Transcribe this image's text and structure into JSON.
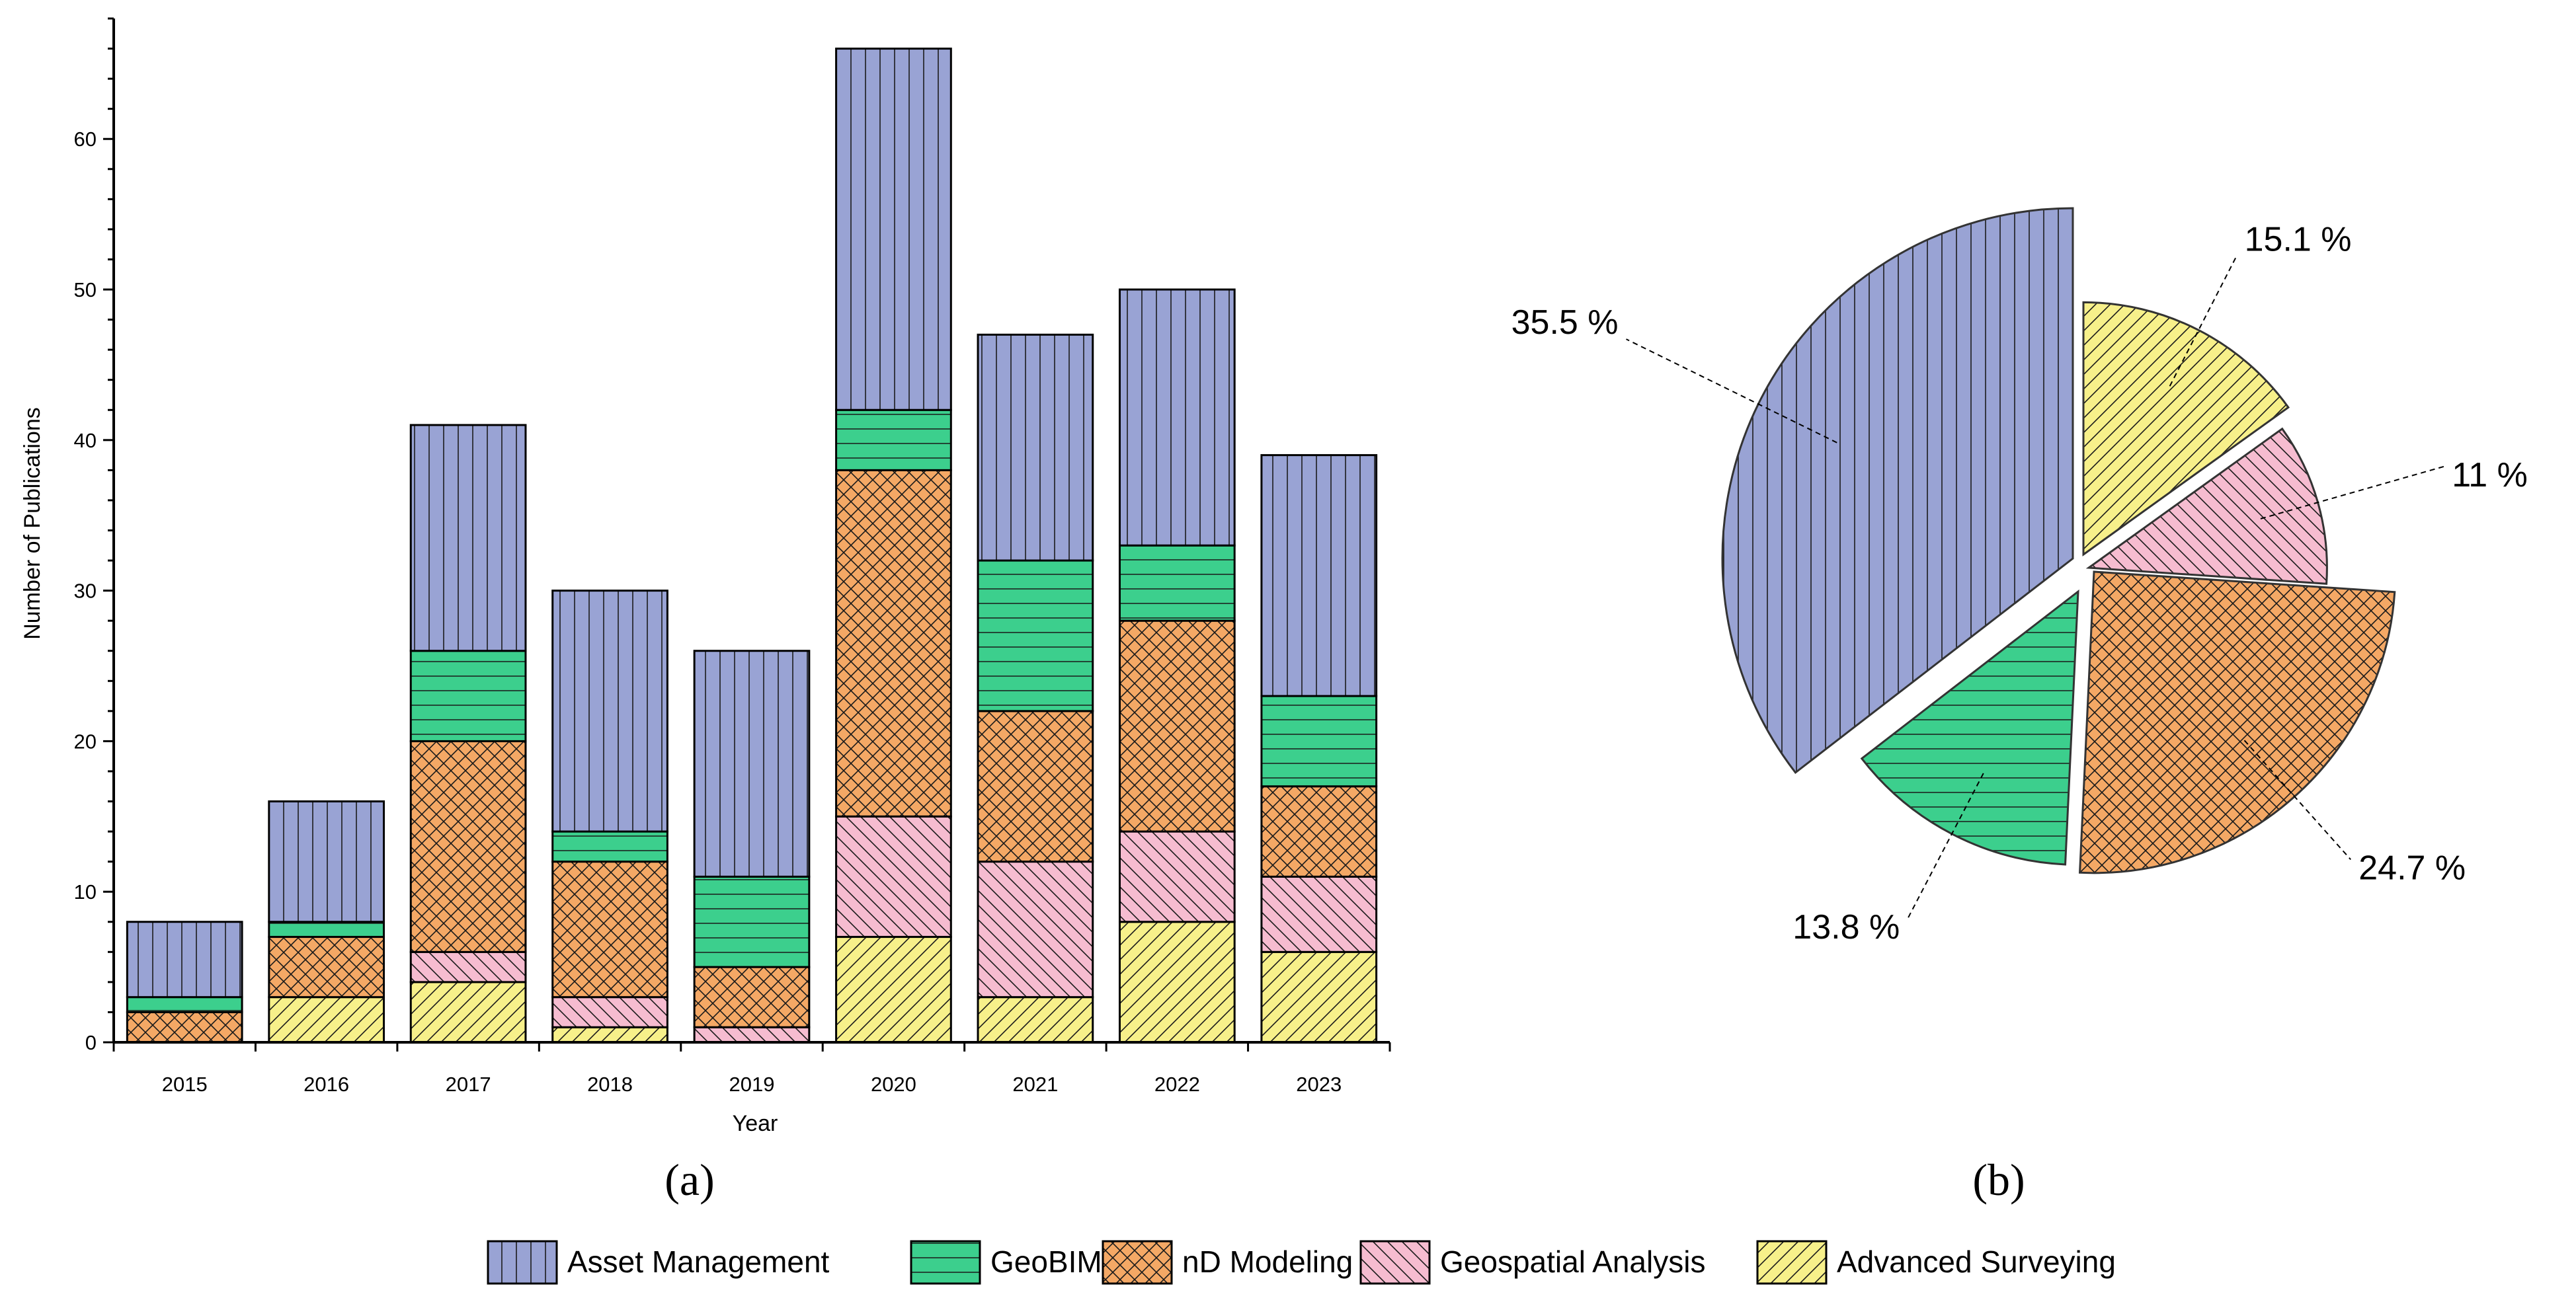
{
  "colors": {
    "Asset Management": "#99a3d4",
    "GeoBIM": "#3ccf8d",
    "nD Modeling": "#f4a865",
    "Geospatial Analysis": "#f6bcd0",
    "Advanced Surveying": "#f7f08a"
  },
  "hatches": {
    "Asset Management": "vertical",
    "GeoBIM": "horizontal",
    "nD Modeling": "crosshatch",
    "Geospatial Analysis": "backslash",
    "Advanced Surveying": "slash"
  },
  "legend": {
    "items": [
      "Asset Management",
      "GeoBIM",
      "nD Modeling",
      "Geospatial Analysis",
      "Advanced Surveying"
    ]
  },
  "panels": {
    "a_label": "(a)",
    "b_label": "(b)"
  },
  "chart_data": [
    {
      "type": "bar",
      "stacked": true,
      "panel": "(a)",
      "title": "",
      "xlabel": "Year",
      "ylabel": "Number of Publications",
      "ylim": [
        0,
        68
      ],
      "yticks": [
        0,
        10,
        20,
        30,
        40,
        50,
        60
      ],
      "categories": [
        "2015",
        "2016",
        "2017",
        "2018",
        "2019",
        "2020",
        "2021",
        "2022",
        "2023"
      ],
      "series": [
        {
          "name": "Advanced Surveying",
          "values": [
            0,
            3,
            4,
            1,
            0,
            7,
            3,
            8,
            6
          ]
        },
        {
          "name": "Geospatial Analysis",
          "values": [
            0,
            0,
            2,
            2,
            1,
            8,
            9,
            6,
            5
          ]
        },
        {
          "name": "nD Modeling",
          "values": [
            2,
            4,
            14,
            9,
            4,
            23,
            10,
            14,
            6
          ]
        },
        {
          "name": "GeoBIM",
          "values": [
            1,
            1,
            6,
            2,
            6,
            4,
            10,
            5,
            6
          ]
        },
        {
          "name": "Asset Management",
          "values": [
            5,
            8,
            15,
            16,
            15,
            24,
            15,
            17,
            16
          ]
        }
      ]
    },
    {
      "type": "pie",
      "panel": "(b)",
      "title": "",
      "slices": [
        {
          "name": "Asset Management",
          "value": 35.5,
          "label": "35.5 %"
        },
        {
          "name": "nD Modeling",
          "value": 24.7,
          "label": "24.7 %"
        },
        {
          "name": "GeoBIM",
          "value": 13.8,
          "label": "13.8 %"
        },
        {
          "name": "Geospatial Analysis",
          "value": 11,
          "label": "11 %"
        },
        {
          "name": "Advanced Surveying",
          "value": 15.1,
          "label": "15.1 %"
        }
      ]
    }
  ]
}
